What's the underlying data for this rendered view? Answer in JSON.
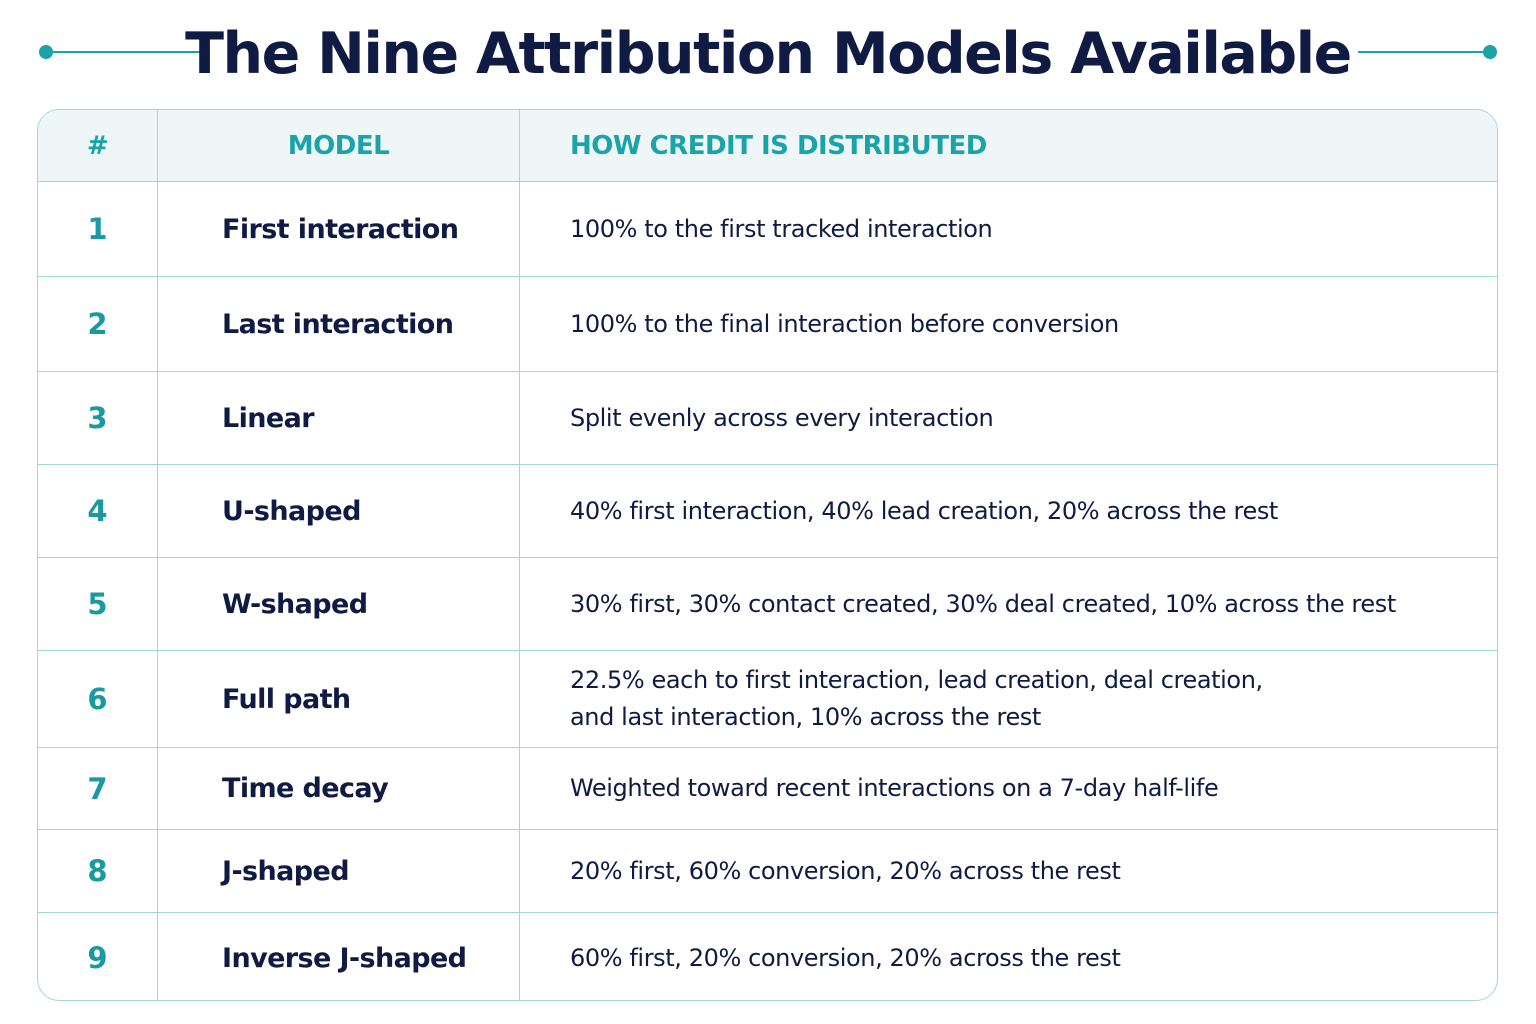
{
  "title": "The Nine Attribution Models Available",
  "colors": {
    "accent": "#1aa3a8",
    "text_dark": "#0f1b43",
    "header_bg": "#eef6f7",
    "border": "#9ed8dc"
  },
  "table": {
    "headers": {
      "num": "#",
      "model": "MODEL",
      "description": "HOW CREDIT IS DISTRIBUTED"
    },
    "rows": [
      {
        "num": "1",
        "model": "First interaction",
        "description": "100% to the first tracked interaction"
      },
      {
        "num": "2",
        "model": "Last interaction",
        "description": "100% to the final interaction before conversion"
      },
      {
        "num": "3",
        "model": "Linear",
        "description": "Split evenly across every interaction"
      },
      {
        "num": "4",
        "model": "U-shaped",
        "description": "40% first interaction, 40% lead creation, 20% across the rest"
      },
      {
        "num": "5",
        "model": "W-shaped",
        "description": "30% first, 30% contact created, 30% deal created, 10% across the rest"
      },
      {
        "num": "6",
        "model": "Full path",
        "description": "22.5% each to first interaction, lead creation, deal creation,\nand last interaction, 10% across the rest"
      },
      {
        "num": "7",
        "model": "Time decay",
        "description": "Weighted toward recent interactions on a 7-day half-life"
      },
      {
        "num": "8",
        "model": "J-shaped",
        "description": "20% first, 60% conversion, 20% across the rest"
      },
      {
        "num": "9",
        "model": "Inverse J-shaped",
        "description": "60% first, 20% conversion, 20% across the rest"
      }
    ]
  }
}
